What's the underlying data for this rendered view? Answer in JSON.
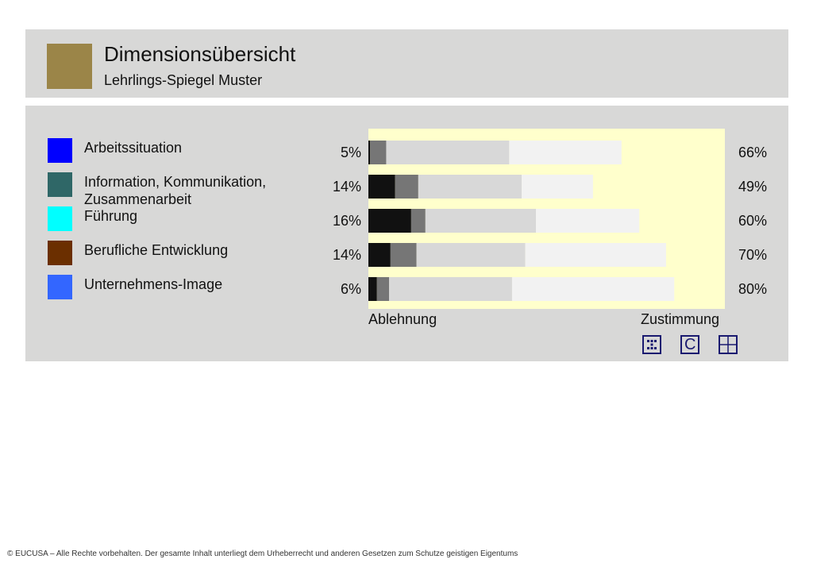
{
  "header": {
    "title": "Dimensionsübersicht",
    "subtitle": "Lehrlings-Spiegel Muster",
    "swatch_color": "#9b8548"
  },
  "chart_data": {
    "type": "bar",
    "orientation": "horizontal",
    "stacked": true,
    "categories": [
      "Arbeitssituation",
      "Information, Kommunikation, Zusammenarbeit",
      "Führung",
      "Berufliche Entwicklung",
      "Unternehmens-Image"
    ],
    "category_colors": [
      "#0000ff",
      "#2f6767",
      "#00ffff",
      "#6b2f00",
      "#3366ff"
    ],
    "series": [
      {
        "color": "#111111",
        "values": [
          0.5,
          7.5,
          12,
          6.2,
          2.4
        ]
      },
      {
        "color": "#767676",
        "values": [
          4.5,
          6.5,
          4,
          7.3,
          3.4
        ]
      },
      {
        "color": "#d8d8d8",
        "values": [
          34.5,
          29,
          31,
          30.5,
          34.5
        ]
      },
      {
        "color": "#f2f2f2",
        "values": [
          31.5,
          20,
          29,
          39.5,
          45.5
        ]
      }
    ],
    "rejection_labels": [
      "5%",
      "14%",
      "16%",
      "14%",
      "6%"
    ],
    "approval_labels": [
      "66%",
      "49%",
      "60%",
      "70%",
      "80%"
    ],
    "xlim": [
      0,
      100
    ],
    "xlabel_left": "Ablehnung",
    "xlabel_right": "Zustimmung",
    "plot_background": "#ffffcc"
  },
  "controls": {
    "icons": [
      "dots-grid-icon",
      "c-letter-icon",
      "quadrant-grid-icon"
    ],
    "c_label": "C",
    "icon_color": "#1a1a70"
  },
  "footer": {
    "text": "© EUCUSA – Alle Rechte vorbehalten. Der gesamte Inhalt unterliegt dem Urheberrecht und anderen Gesetzen zum Schutze geistigen Eigentums"
  }
}
